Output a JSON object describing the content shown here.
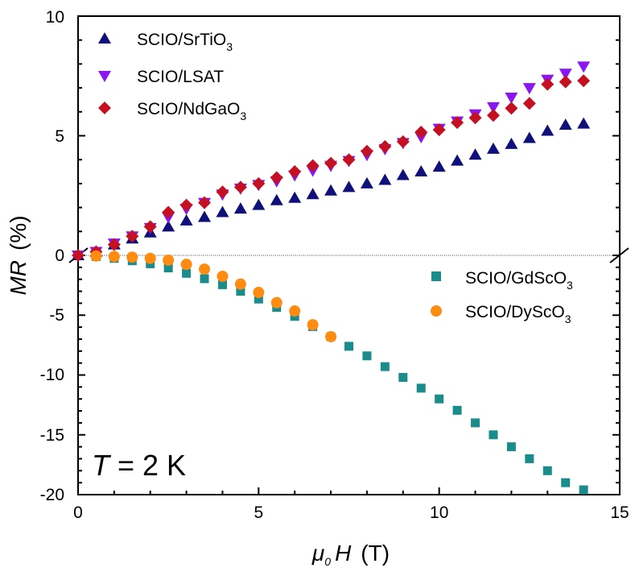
{
  "chart_data": [
    {
      "type": "scatter",
      "panel": "upper",
      "xlim": [
        0,
        15
      ],
      "ylim": [
        0,
        10
      ],
      "yticks": [
        0,
        5,
        10
      ],
      "series": [
        {
          "name": "SCIO/SrTiO3",
          "color": "#10107a",
          "marker": "triangle-up",
          "x": [
            0,
            0.5,
            1,
            1.5,
            2,
            2.5,
            3,
            3.5,
            4,
            4.5,
            5,
            5.5,
            6,
            6.5,
            7,
            7.5,
            8,
            8.5,
            9,
            9.5,
            10,
            10.5,
            11,
            11.5,
            12,
            12.5,
            13,
            13.5,
            14
          ],
          "y": [
            0,
            0.15,
            0.45,
            0.7,
            0.95,
            1.2,
            1.45,
            1.6,
            1.8,
            1.95,
            2.1,
            2.3,
            2.4,
            2.55,
            2.7,
            2.85,
            3.0,
            3.15,
            3.35,
            3.5,
            3.7,
            3.95,
            4.2,
            4.45,
            4.65,
            4.9,
            5.2,
            5.45,
            5.5
          ]
        },
        {
          "name": "SCIO/LSAT",
          "color": "#8a16f2",
          "marker": "triangle-down",
          "x": [
            0,
            0.5,
            1,
            1.5,
            2,
            2.5,
            3,
            3.5,
            4,
            4.5,
            5,
            5.5,
            6,
            6.5,
            7,
            7.5,
            8,
            8.5,
            9,
            9.5,
            10,
            10.5,
            11,
            11.5,
            12,
            12.5,
            13,
            13.5,
            14
          ],
          "y": [
            0,
            0.15,
            0.5,
            0.8,
            1.15,
            1.6,
            1.95,
            2.2,
            2.55,
            2.8,
            2.95,
            3.1,
            3.35,
            3.55,
            3.75,
            3.95,
            4.2,
            4.45,
            4.7,
            4.95,
            5.3,
            5.6,
            5.9,
            6.2,
            6.6,
            7.0,
            7.35,
            7.6,
            7.9
          ]
        },
        {
          "name": "SCIO/NdGaO3",
          "color": "#c41020",
          "marker": "diamond",
          "x": [
            0,
            0.5,
            1,
            1.5,
            2,
            2.5,
            3,
            3.5,
            4,
            4.5,
            5,
            5.5,
            6,
            6.5,
            7,
            7.5,
            8,
            8.5,
            9,
            9.5,
            10,
            10.5,
            11,
            11.5,
            12,
            12.5,
            13,
            13.5,
            14
          ],
          "y": [
            0,
            0.15,
            0.45,
            0.8,
            1.2,
            1.8,
            2.1,
            2.2,
            2.65,
            2.85,
            3.0,
            3.25,
            3.5,
            3.75,
            3.85,
            4.0,
            4.35,
            4.55,
            4.75,
            5.15,
            5.25,
            5.55,
            5.75,
            5.85,
            6.15,
            6.35,
            7.15,
            7.25,
            7.3
          ]
        }
      ]
    },
    {
      "type": "scatter",
      "panel": "lower",
      "xlim": [
        0,
        15
      ],
      "ylim": [
        -20,
        0
      ],
      "yticks": [
        -5,
        -10,
        -15,
        -20
      ],
      "series": [
        {
          "name": "SCIO/GdScO3",
          "color": "#1a8c8c",
          "marker": "square",
          "x": [
            0.5,
            1,
            1.5,
            2,
            2.5,
            3,
            3.5,
            4,
            4.5,
            5,
            5.5,
            6,
            6.5,
            7,
            7.5,
            8,
            8.5,
            9,
            9.5,
            10,
            10.5,
            11,
            11.5,
            12,
            12.5,
            13,
            13.5,
            14
          ],
          "y": [
            -0.1,
            -0.25,
            -0.45,
            -0.7,
            -1.05,
            -1.5,
            -1.95,
            -2.45,
            -3.0,
            -3.65,
            -4.35,
            -5.1,
            -5.95,
            -6.8,
            -7.6,
            -8.4,
            -9.3,
            -10.2,
            -11.1,
            -12.0,
            -12.95,
            -14.0,
            -15.0,
            -16.0,
            -17.0,
            -18.0,
            -19.0,
            -19.6
          ]
        },
        {
          "name": "SCIO/DyScO3",
          "color": "#ff8c10",
          "marker": "circle",
          "x": [
            0.5,
            1,
            1.5,
            2,
            2.5,
            3,
            3.5,
            4,
            4.5,
            5,
            5.5,
            6,
            6.5,
            7
          ],
          "y": [
            -0.05,
            -0.1,
            -0.15,
            -0.25,
            -0.4,
            -0.75,
            -1.15,
            -1.75,
            -2.4,
            -3.1,
            -3.95,
            -4.65,
            -5.8,
            -6.8
          ]
        }
      ]
    }
  ],
  "axes": {
    "xticks": [
      "0",
      "5",
      "10",
      "15"
    ],
    "yticks_upper": [
      "0",
      "5",
      "10"
    ],
    "yticks_lower": [
      "-5",
      "-10",
      "-15",
      "-20"
    ],
    "xlabel_main": "μ",
    "xlabel_sub": "0",
    "xlabel_var": "H",
    "xlabel_unit": "(T)",
    "ylabel_var": "MR",
    "ylabel_unit": "(%)"
  },
  "legend_upper": [
    {
      "base": "SCIO/SrTiO",
      "sub": "3"
    },
    {
      "base": "SCIO/LSAT",
      "sub": ""
    },
    {
      "base": "SCIO/NdGaO",
      "sub": "3"
    }
  ],
  "legend_lower": [
    {
      "base": "SCIO/GdScO",
      "sub": "3"
    },
    {
      "base": "SCIO/DyScO",
      "sub": "3"
    }
  ],
  "annotation": {
    "var": "T",
    "rest": " = 2 K"
  }
}
